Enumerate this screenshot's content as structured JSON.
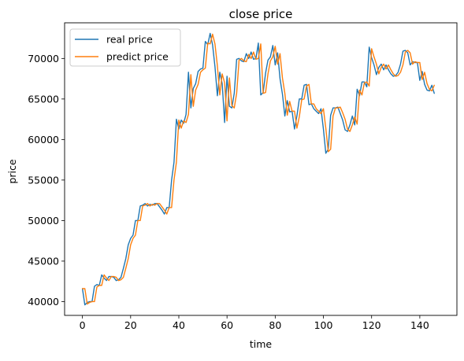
{
  "chart_data": {
    "type": "line",
    "title": "close price",
    "xlabel": "time",
    "ylabel": "price",
    "xlim": [
      -7.4,
      155.4
    ],
    "ylim": [
      38300,
      74400
    ],
    "xticks": [
      0,
      20,
      40,
      60,
      80,
      100,
      120,
      140
    ],
    "yticks": [
      40000,
      45000,
      50000,
      55000,
      60000,
      65000,
      70000
    ],
    "grid": false,
    "legend_position": "top-left",
    "colors": {
      "real": "#1f77b4",
      "predict": "#ff7f0e",
      "axis": "#000000"
    },
    "series": [
      {
        "name": "real price",
        "color": "#1f77b4",
        "values": [
          41600,
          39600,
          39900,
          40000,
          40000,
          41900,
          42100,
          42000,
          43300,
          42900,
          42600,
          43100,
          43100,
          43000,
          42600,
          42700,
          43000,
          44100,
          45300,
          47000,
          47800,
          48200,
          50000,
          50000,
          51800,
          51900,
          52100,
          51800,
          52000,
          51900,
          52100,
          52100,
          51700,
          51300,
          50800,
          51600,
          51600,
          55000,
          57200,
          62500,
          61300,
          62400,
          62000,
          63100,
          68300,
          63900,
          66300,
          66900,
          68400,
          68700,
          68800,
          72100,
          71700,
          73100,
          71700,
          69000,
          65400,
          68300,
          66900,
          62100,
          67800,
          64100,
          63900,
          65700,
          69900,
          70000,
          69700,
          69600,
          70600,
          70000,
          70800,
          69900,
          70000,
          71900,
          65500,
          65800,
          68200,
          69800,
          70200,
          71600,
          69200,
          70700,
          67500,
          65600,
          62900,
          64800,
          63400,
          63500,
          61300,
          62900,
          65000,
          65000,
          66700,
          66800,
          64300,
          64400,
          63800,
          63500,
          63200,
          63800,
          61300,
          58300,
          58800,
          63000,
          63900,
          63900,
          64000,
          63200,
          62400,
          61200,
          61000,
          61800,
          62900,
          61800,
          66200,
          65400,
          67100,
          67100,
          66500,
          71400,
          70100,
          69200,
          68000,
          68900,
          69300,
          68600,
          69200,
          68600,
          68100,
          67800,
          67900,
          68300,
          69300,
          70900,
          71000,
          70700,
          69200,
          69600,
          69500,
          69500,
          67300,
          68400,
          66800,
          66100,
          66000,
          66700,
          65700
        ]
      },
      {
        "name": "predict price",
        "color": "#ff7f0e",
        "values": [
          41600,
          41600,
          39700,
          39900,
          40000,
          40000,
          41800,
          42000,
          42000,
          43300,
          42900,
          42600,
          43100,
          43100,
          43000,
          42600,
          42700,
          43000,
          44100,
          45300,
          47000,
          47800,
          48200,
          50000,
          50000,
          51800,
          51900,
          52100,
          51800,
          52000,
          51900,
          52100,
          52100,
          51700,
          51300,
          50800,
          51600,
          51600,
          55000,
          57200,
          62400,
          61400,
          62300,
          62100,
          63100,
          68000,
          64100,
          66100,
          66800,
          68300,
          68600,
          68800,
          71900,
          71800,
          73000,
          71800,
          69100,
          65500,
          68100,
          67000,
          62300,
          67600,
          64200,
          63900,
          65700,
          69800,
          70000,
          69700,
          69600,
          70500,
          70000,
          70800,
          69900,
          70000,
          71800,
          65700,
          65800,
          68100,
          69700,
          70200,
          71500,
          69300,
          70600,
          67600,
          65700,
          63000,
          64700,
          63500,
          63500,
          61400,
          62800,
          64900,
          65000,
          66600,
          66800,
          64400,
          64400,
          63800,
          63500,
          63200,
          63800,
          61400,
          58500,
          58800,
          62900,
          63900,
          63900,
          64000,
          63300,
          62500,
          61300,
          61000,
          61800,
          62800,
          61900,
          66100,
          65500,
          67000,
          67100,
          66600,
          71200,
          70200,
          69300,
          68100,
          68900,
          69300,
          68700,
          69200,
          68600,
          68100,
          67800,
          67900,
          68300,
          69200,
          70800,
          71000,
          70700,
          69300,
          69600,
          69500,
          69500,
          67400,
          68300,
          66900,
          66200,
          66000,
          66700
        ]
      }
    ]
  }
}
